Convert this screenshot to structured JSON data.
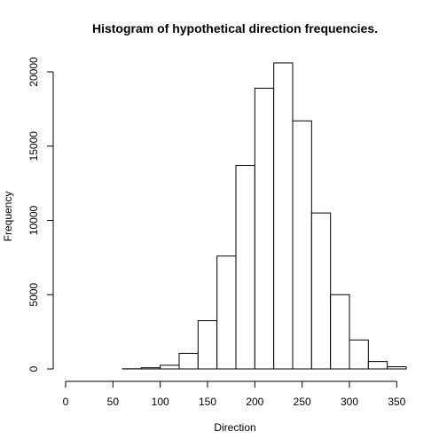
{
  "chart_data": {
    "type": "bar",
    "title": "Histogram of hypothetical direction frequencies.",
    "xlabel": "Direction",
    "ylabel": "Frequency",
    "xlim": [
      0,
      360
    ],
    "ylim": [
      0,
      20500
    ],
    "bin_width": 20,
    "bins": [
      {
        "start": 0,
        "end": 20,
        "count": 0
      },
      {
        "start": 20,
        "end": 40,
        "count": 0
      },
      {
        "start": 40,
        "end": 60,
        "count": 0
      },
      {
        "start": 60,
        "end": 80,
        "count": 10
      },
      {
        "start": 80,
        "end": 100,
        "count": 80
      },
      {
        "start": 100,
        "end": 120,
        "count": 250
      },
      {
        "start": 120,
        "end": 140,
        "count": 1050
      },
      {
        "start": 140,
        "end": 160,
        "count": 3250
      },
      {
        "start": 160,
        "end": 180,
        "count": 7600
      },
      {
        "start": 180,
        "end": 200,
        "count": 13700
      },
      {
        "start": 200,
        "end": 220,
        "count": 18900
      },
      {
        "start": 220,
        "end": 240,
        "count": 20600
      },
      {
        "start": 240,
        "end": 260,
        "count": 16700
      },
      {
        "start": 260,
        "end": 280,
        "count": 10500
      },
      {
        "start": 280,
        "end": 300,
        "count": 5000
      },
      {
        "start": 300,
        "end": 320,
        "count": 1950
      },
      {
        "start": 320,
        "end": 340,
        "count": 500
      },
      {
        "start": 340,
        "end": 360,
        "count": 150
      }
    ],
    "x_ticks": [
      0,
      50,
      100,
      150,
      200,
      250,
      300,
      350
    ],
    "y_ticks": [
      0,
      5000,
      10000,
      15000,
      20000
    ],
    "grid": false,
    "bar_fill": "#ffffff",
    "bar_stroke": "#000000"
  }
}
